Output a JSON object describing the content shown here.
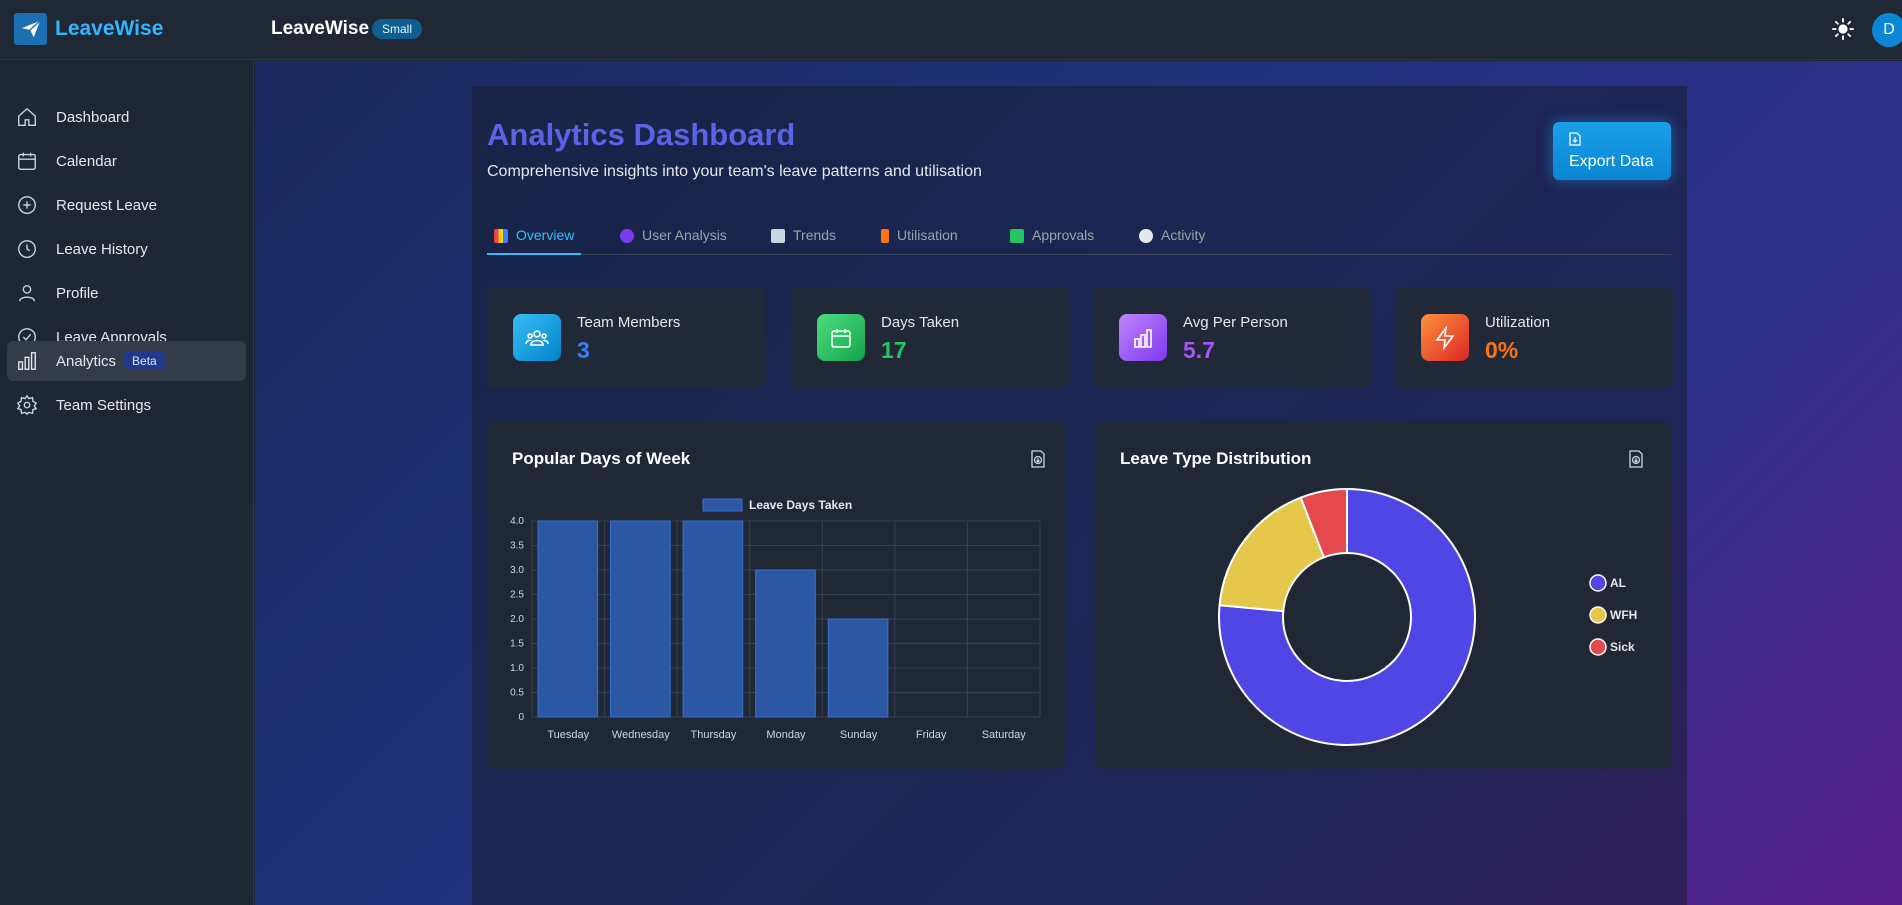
{
  "brand": {
    "name": "LeaveWise"
  },
  "header": {
    "title": "LeaveWise",
    "badge": "Small",
    "avatar_initial": "D"
  },
  "sidebar": {
    "items": [
      {
        "label": "Dashboard",
        "icon": "home-icon"
      },
      {
        "label": "Calendar",
        "icon": "calendar-icon"
      },
      {
        "label": "Request Leave",
        "icon": "plus-circle-icon"
      },
      {
        "label": "Leave History",
        "icon": "clock-icon"
      },
      {
        "label": "Profile",
        "icon": "user-icon"
      },
      {
        "label": "Leave Approvals",
        "icon": "check-circle-icon"
      },
      {
        "label": "Analytics",
        "icon": "bar-chart-icon",
        "badge": "Beta",
        "active": true
      },
      {
        "label": "Team Settings",
        "icon": "gear-icon"
      }
    ]
  },
  "page": {
    "title": "Analytics Dashboard",
    "subtitle": "Comprehensive insights into your team's leave patterns and utilisation",
    "export_label": "Export Data"
  },
  "tabs": [
    {
      "label": "Overview",
      "active": true
    },
    {
      "label": "User Analysis"
    },
    {
      "label": "Trends"
    },
    {
      "label": "Utilisation"
    },
    {
      "label": "Approvals"
    },
    {
      "label": "Activity"
    }
  ],
  "stats": [
    {
      "label": "Team Members",
      "value": "3",
      "color": "#3b82f6",
      "icon": "team-icon"
    },
    {
      "label": "Days Taken",
      "value": "17",
      "color": "#22c55e",
      "icon": "calendar-icon"
    },
    {
      "label": "Avg Per Person",
      "value": "5.7",
      "color": "#a855f7",
      "icon": "bar-chart-icon"
    },
    {
      "label": "Utilization",
      "value": "0%",
      "color": "#f97316",
      "icon": "bolt-icon"
    }
  ],
  "cards": {
    "popular_days_title": "Popular Days of Week",
    "leave_type_title": "Leave Type Distribution"
  },
  "chart_data": [
    {
      "type": "bar",
      "title": "Popular Days of Week",
      "categories": [
        "Tuesday",
        "Wednesday",
        "Thursday",
        "Monday",
        "Sunday",
        "Friday",
        "Saturday"
      ],
      "series": [
        {
          "name": "Leave Days Taken",
          "values": [
            4,
            4,
            4,
            3,
            2,
            0,
            0
          ]
        }
      ],
      "ylim": [
        0,
        4
      ],
      "yticks": [
        "4.0",
        "3.5",
        "3.0",
        "2.5",
        "2.0",
        "1.5",
        "1.0",
        "0.5",
        "0"
      ],
      "grid": true,
      "legend": "top"
    },
    {
      "type": "pie",
      "title": "Leave Type Distribution",
      "donut": true,
      "labels": [
        "AL",
        "WFH",
        "Sick"
      ],
      "values": [
        13,
        3,
        1
      ],
      "colors": [
        "#5046e5",
        "#e5c84a",
        "#e5484d"
      ],
      "legend": "right"
    }
  ]
}
